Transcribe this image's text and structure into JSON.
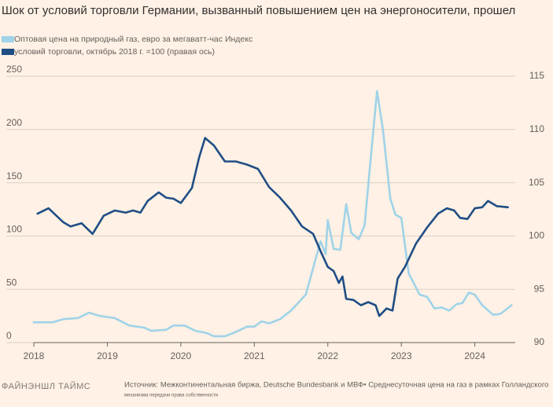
{
  "chart_data": {
    "type": "line",
    "title": "Шок от условий торговли Германии, вызванный повышением цен на энергоносители, прошел",
    "series": [
      {
        "name": "Оптовая цена на природный газ, евро за мегаватт-час Индекс",
        "color": "#9fd3e8",
        "axis": "y",
        "x": [
          2018.0,
          2018.25,
          2018.4,
          2018.6,
          2018.75,
          2018.9,
          2019.1,
          2019.3,
          2019.5,
          2019.6,
          2019.8,
          2019.9,
          2020.05,
          2020.2,
          2020.35,
          2020.45,
          2020.6,
          2020.75,
          2020.9,
          2021.0,
          2021.1,
          2021.2,
          2021.35,
          2021.5,
          2021.7,
          2021.8,
          2021.9,
          2021.97,
          2022.0,
          2022.08,
          2022.17,
          2022.25,
          2022.32,
          2022.42,
          2022.5,
          2022.58,
          2022.67,
          2022.75,
          2022.85,
          2022.92,
          2023.0,
          2023.1,
          2023.25,
          2023.35,
          2023.45,
          2023.55,
          2023.65,
          2023.75,
          2023.83,
          2023.92,
          2024.0,
          2024.1,
          2024.25,
          2024.35,
          2024.5
        ],
        "values": [
          19,
          19,
          22,
          23,
          28,
          25,
          23,
          16,
          14,
          11,
          12,
          16,
          16,
          11,
          9,
          6,
          6,
          10,
          15,
          15,
          20,
          18,
          22,
          30,
          45,
          70,
          95,
          83,
          115,
          88,
          87,
          130,
          103,
          97,
          110,
          170,
          236,
          200,
          135,
          120,
          117,
          65,
          45,
          43,
          32,
          33,
          30,
          36,
          37,
          47,
          45,
          35,
          26,
          27,
          35
        ]
      },
      {
        "name": "условий торговли, октябрь 2018 г. =100 (правая ось)",
        "color": "#1f4e85",
        "axis": "y2",
        "x": [
          2018.05,
          2018.2,
          2018.4,
          2018.5,
          2018.65,
          2018.8,
          2018.95,
          2019.1,
          2019.25,
          2019.35,
          2019.45,
          2019.55,
          2019.7,
          2019.8,
          2019.9,
          2020.0,
          2020.15,
          2020.25,
          2020.33,
          2020.45,
          2020.6,
          2020.75,
          2020.9,
          2021.05,
          2021.2,
          2021.35,
          2021.5,
          2021.65,
          2021.8,
          2021.9,
          2022.0,
          2022.08,
          2022.15,
          2022.2,
          2022.25,
          2022.35,
          2022.45,
          2022.55,
          2022.65,
          2022.7,
          2022.8,
          2022.88,
          2022.95,
          2023.05,
          2023.2,
          2023.35,
          2023.5,
          2023.62,
          2023.72,
          2023.8,
          2023.9,
          2024.0,
          2024.1,
          2024.18,
          2024.3,
          2024.45
        ],
        "values": [
          102.1,
          102.6,
          101.3,
          100.9,
          101.2,
          100.2,
          101.9,
          102.4,
          102.2,
          102.4,
          102.2,
          103.3,
          104.1,
          103.6,
          103.5,
          103.1,
          104.5,
          107.4,
          109.2,
          108.5,
          107.0,
          107.0,
          106.7,
          106.3,
          104.6,
          103.6,
          102.4,
          100.9,
          100.2,
          98.6,
          97.1,
          96.7,
          95.6,
          96.2,
          94.1,
          94.0,
          93.5,
          93.8,
          93.5,
          92.5,
          93.2,
          93.0,
          96.0,
          97.1,
          99.3,
          100.8,
          102.1,
          102.6,
          102.4,
          101.7,
          101.6,
          102.6,
          102.7,
          103.3,
          102.8,
          102.7
        ]
      }
    ],
    "xlim": [
      2018,
      2024.55
    ],
    "xticks": [
      2018,
      2019,
      2020,
      2021,
      2022,
      2023,
      2024
    ],
    "ylim": [
      0,
      250
    ],
    "yticks": [
      0,
      50,
      100,
      150,
      200,
      250
    ],
    "y2lim": [
      90,
      115
    ],
    "y2ticks": [
      90,
      95,
      100,
      105,
      110,
      115
    ],
    "grid": true,
    "brand": "ФАЙНЭНШЛ ТАЙМС",
    "source": "Источник: Межконтинентальная биржа, Deutsche Bundesbank и МВФ• Среднесуточная цена на газ в рамках Голландского",
    "note": "механизма передачи права собственности"
  }
}
